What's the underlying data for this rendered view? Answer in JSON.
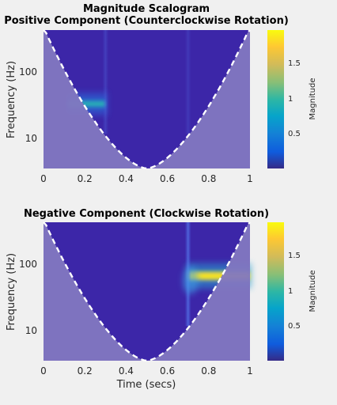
{
  "figure_title": "Magnitude Scalogram",
  "colors": {
    "background": "#f0f0f0",
    "plot_low": "#3c26a8",
    "coi_shade": "#8277c0",
    "coi_line": "#ffffff"
  },
  "chart_data": [
    {
      "type": "heatmap",
      "title": "Positive Component (Counterclockwise Rotation)",
      "xlabel": "",
      "ylabel": "Frequency (Hz)",
      "xlim": [
        0,
        1
      ],
      "ylim": [
        3.5,
        400
      ],
      "yscale": "log",
      "xticks": [
        "0",
        "0.2",
        "0.4",
        "0.6",
        "0.8",
        "1"
      ],
      "yticks": [
        "10",
        "100"
      ],
      "yticks_values": [
        10,
        100
      ],
      "colorbar": {
        "label": "Magnitude",
        "ticks": [
          "0.5",
          "1",
          "1.5"
        ],
        "tick_values": [
          0.5,
          1,
          1.5
        ],
        "range": [
          0,
          1.95
        ],
        "colormap": "parula"
      },
      "features": [
        {
          "kind": "tone",
          "t_start": 0.12,
          "t_end": 0.3,
          "frequency_hz": 32,
          "magnitude": 1.0
        },
        {
          "kind": "transient",
          "time": 0.3,
          "magnitude": 0.2
        },
        {
          "kind": "transient",
          "time": 0.7,
          "magnitude": 0.15
        }
      ],
      "cone_of_influence": true
    },
    {
      "type": "heatmap",
      "title": "Negative Component (Clockwise Rotation)",
      "xlabel": "Time (secs)",
      "ylabel": "Frequency (Hz)",
      "xlim": [
        0,
        1
      ],
      "ylim": [
        3.5,
        400
      ],
      "yscale": "log",
      "xticks": [
        "0",
        "0.2",
        "0.4",
        "0.6",
        "0.8",
        "1"
      ],
      "yticks": [
        "10",
        "100"
      ],
      "yticks_values": [
        10,
        100
      ],
      "colorbar": {
        "label": "Magnitude",
        "ticks": [
          "0.5",
          "1",
          "1.5"
        ],
        "tick_values": [
          0.5,
          1,
          1.5
        ],
        "range": [
          0,
          1.95
        ],
        "colormap": "parula"
      },
      "features": [
        {
          "kind": "tone",
          "t_start": 0.7,
          "t_end": 1.0,
          "frequency_hz": 64,
          "magnitude": 1.9
        },
        {
          "kind": "transient",
          "time": 0.7,
          "magnitude": 0.5
        }
      ],
      "cone_of_influence": true
    }
  ]
}
